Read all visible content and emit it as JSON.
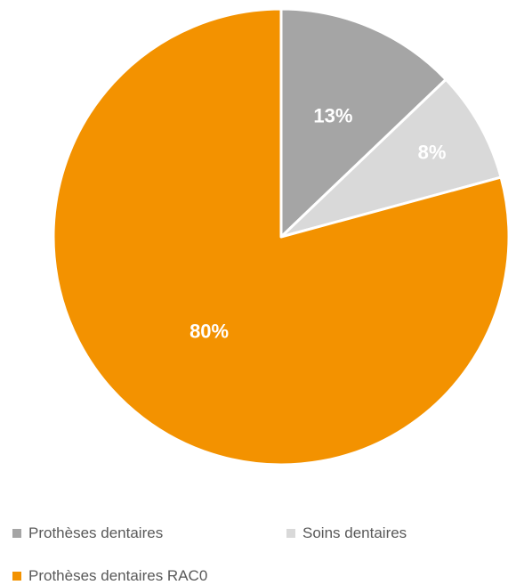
{
  "chart_data": {
    "type": "pie",
    "title": "",
    "start_angle_deg": 0,
    "direction": "clockwise",
    "slices": [
      {
        "name": "Prothèses dentaires",
        "value": 13,
        "label": "13%",
        "color": "#a5a5a5"
      },
      {
        "name": "Soins dentaires",
        "value": 8,
        "label": "8%",
        "color": "#d9d9d9"
      },
      {
        "name": "Prothèses dentaires RAC0",
        "value": 80,
        "label": "80%",
        "color": "#f39200"
      }
    ],
    "legend": {
      "position": "bottom",
      "text_color": "#595959"
    },
    "label_color": "#ffffff"
  }
}
